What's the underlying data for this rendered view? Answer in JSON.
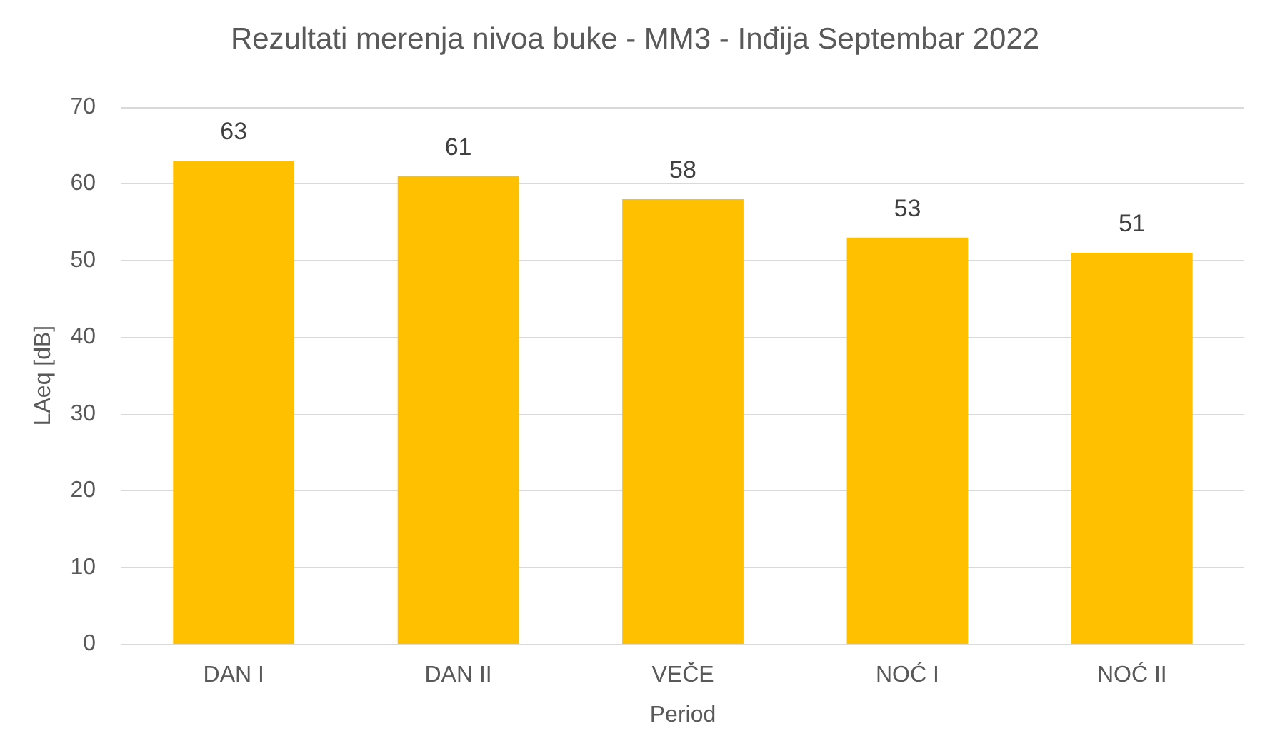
{
  "chart_data": {
    "type": "bar",
    "title": "Rezultati merenja nivoa buke - MM3 - Inđija Septembar 2022",
    "xlabel": "Period",
    "ylabel": "LAeq [dB]",
    "categories": [
      "DAN I",
      "DAN II",
      "VEČE",
      "NOĆ I",
      "NOĆ II"
    ],
    "values": [
      63,
      61,
      58,
      53,
      51
    ],
    "color": "#ffc000",
    "ylim": [
      0,
      70
    ],
    "yticks": [
      0,
      10,
      20,
      30,
      40,
      50,
      60,
      70
    ],
    "grid": "y",
    "data_labels": true
  }
}
